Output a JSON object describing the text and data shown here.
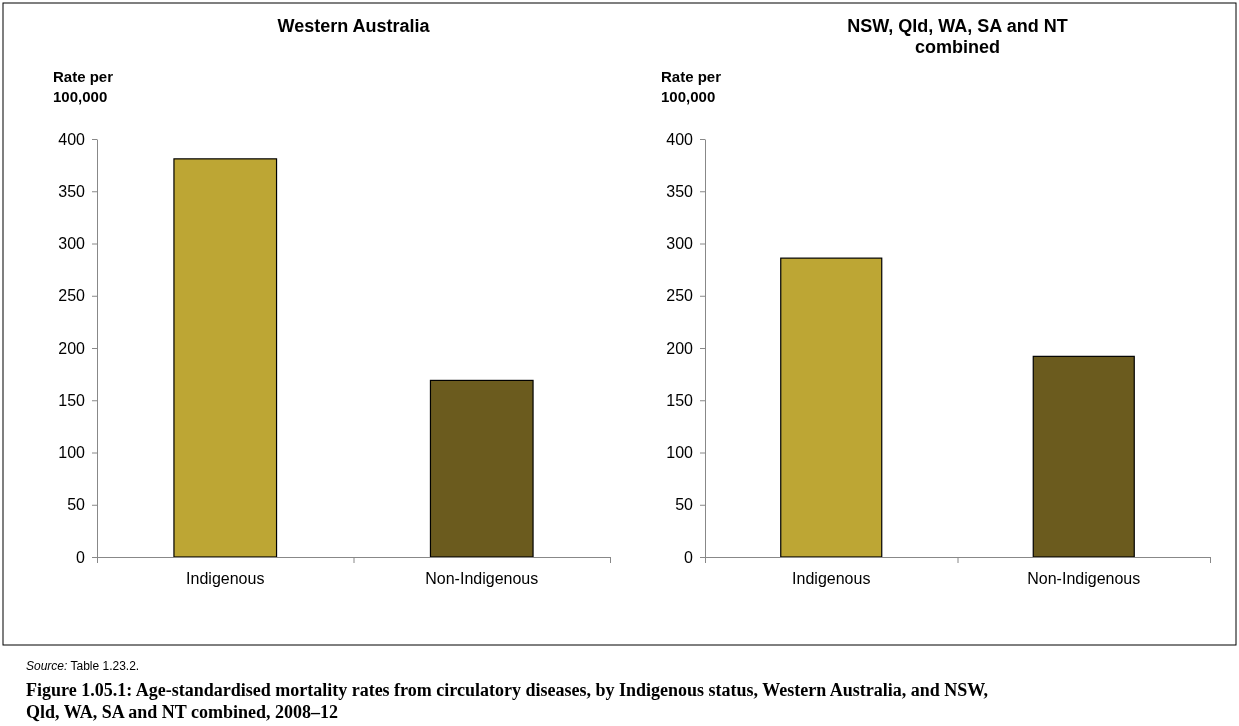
{
  "chart_data": [
    {
      "type": "bar",
      "title": "Western Australia",
      "ylabel": "Rate per 100,000",
      "categories": [
        "Indigenous",
        "Non-Indigenous"
      ],
      "values": [
        381,
        169
      ],
      "colors": [
        "#bda634",
        "#6b5b1e"
      ],
      "ylim": [
        0,
        400
      ],
      "yticks": [
        0,
        50,
        100,
        150,
        200,
        250,
        300,
        350,
        400
      ],
      "grid": false,
      "annotations": [
        "Source: Table 1.23.2.",
        "Figure 1.05.1: Age-standardised mortality rates from circulatory diseases, by Indigenous status, Western Australia, and NSW, Qld, WA, SA and NT combined, 2008–12"
      ]
    },
    {
      "type": "bar",
      "title": "NSW, Qld, WA, SA and NT combined",
      "ylabel": "Rate per 100,000",
      "categories": [
        "Indigenous",
        "Non-Indigenous"
      ],
      "values": [
        286,
        192
      ],
      "colors": [
        "#bda634",
        "#6b5b1e"
      ],
      "ylim": [
        0,
        400
      ],
      "yticks": [
        0,
        50,
        100,
        150,
        200,
        250,
        300,
        350,
        400
      ],
      "grid": false
    }
  ]
}
